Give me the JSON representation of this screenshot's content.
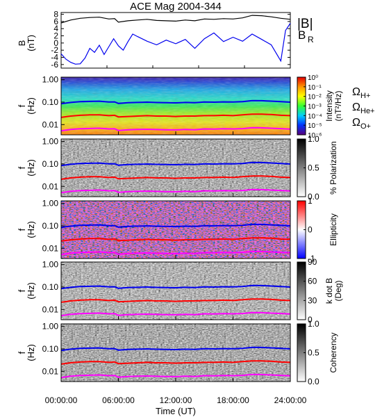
{
  "figure_title": "ACE Mag 2004-344",
  "x_axis": {
    "label": "Time (UT)",
    "ticks": [
      "00:00:00",
      "06:00:00",
      "12:00:00",
      "18:00:00",
      "24:00:00"
    ],
    "range_hours": [
      0,
      24
    ]
  },
  "freq_ticks": [
    "1.00",
    "0.10",
    "0.01"
  ],
  "freq_label": [
    "f",
    "(Hz)"
  ],
  "line_colors": {
    "H": "#0000ee",
    "He": "#ff0000",
    "O": "#ff00ff",
    "Bmag": "#000000",
    "BR": "#0000ee"
  },
  "chart_data": [
    {
      "type": "line",
      "id": "field",
      "ylabel": [
        "B",
        "(nT)"
      ],
      "yticks": [
        "8",
        "6",
        "4",
        "2",
        "0",
        "-2",
        "-4",
        "-6"
      ],
      "ylim": [
        -7,
        8.5
      ],
      "legend": [
        "|B|",
        "B",
        "R"
      ],
      "series": [
        {
          "name": "|B|",
          "x": [
            0,
            1,
            2,
            3,
            4,
            5,
            5.6,
            6,
            7,
            8,
            9,
            10,
            11,
            12,
            13,
            14,
            15,
            16,
            17,
            18,
            19,
            20,
            21,
            22,
            23,
            24
          ],
          "values": [
            5.6,
            6.4,
            6.9,
            7.1,
            7.2,
            6.7,
            6.8,
            5.8,
            6.2,
            6.4,
            6.6,
            6.3,
            6.2,
            6.1,
            6.4,
            6.2,
            6.7,
            6.6,
            6.8,
            6.7,
            7.0,
            7.7,
            7.6,
            7.3,
            6.9,
            6.6
          ]
        },
        {
          "name": "B_R",
          "x": [
            0,
            0.5,
            1,
            1.5,
            2,
            2.5,
            3,
            3.5,
            4,
            4.5,
            5,
            5.5,
            6,
            6.5,
            7,
            7.5,
            8,
            9,
            10,
            11,
            12,
            13,
            14,
            15,
            16,
            17,
            18,
            19,
            20,
            21,
            22,
            23,
            23.5,
            24
          ],
          "values": [
            -3.0,
            -4.5,
            -5.4,
            -5.9,
            -5.8,
            -4.2,
            -1.5,
            -2.6,
            -0.6,
            -3.2,
            -1.0,
            1.2,
            -0.8,
            -2.0,
            0.4,
            2.5,
            1.8,
            0.5,
            -0.5,
            0.8,
            -0.2,
            1.0,
            -1.5,
            1.2,
            2.8,
            0.4,
            1.6,
            0.5,
            2.5,
            1.0,
            -0.5,
            -5.0,
            3.5,
            5.5
          ]
        }
      ]
    },
    {
      "type": "heatmap",
      "id": "intensity",
      "colorbar": {
        "scale": "log",
        "ticks": [
          "10⁰",
          "10⁻¹",
          "10⁻²",
          "10⁻³",
          "10⁻⁴",
          "10⁻⁵",
          "10⁻⁶"
        ],
        "label": [
          "Intensity",
          "(nT²/Hz)"
        ],
        "colormap": "rainbow"
      },
      "legend": [
        {
          "symbol": "Ω",
          "sub": "H+",
          "color": "#0000ee"
        },
        {
          "symbol": "Ω",
          "sub": "He+",
          "color": "#ff0000"
        },
        {
          "symbol": "Ω",
          "sub": "O+",
          "color": "#ff00ff"
        }
      ]
    },
    {
      "type": "heatmap",
      "id": "polarization",
      "colorbar": {
        "scale": "linear",
        "ticks": [
          "1.0",
          "0.5",
          "0.0"
        ],
        "label": [
          "% Polarization"
        ],
        "colormap": "gray"
      }
    },
    {
      "type": "heatmap",
      "id": "ellipticity",
      "colorbar": {
        "scale": "linear",
        "ticks": [
          "1",
          "0",
          "-1"
        ],
        "label": [
          "Ellipticity"
        ],
        "colormap": "bwr"
      }
    },
    {
      "type": "heatmap",
      "id": "kdotb",
      "colorbar": {
        "scale": "linear",
        "ticks": [
          "90",
          "60",
          "30",
          "0"
        ],
        "label": [
          "k dot B",
          "(Deg)"
        ],
        "colormap": "gray"
      }
    },
    {
      "type": "heatmap",
      "id": "coherency",
      "colorbar": {
        "scale": "linear",
        "ticks": [
          "1.0",
          "0.5",
          "0.0"
        ],
        "label": [
          "Coherency"
        ],
        "colormap": "gray"
      }
    }
  ],
  "gyrofrequency_lines": {
    "x": [
      0,
      1,
      2,
      3,
      4,
      5,
      5.6,
      6,
      7,
      8,
      9,
      10,
      11,
      12,
      13,
      14,
      15,
      16,
      17,
      18,
      19,
      20,
      21,
      22,
      23,
      24
    ],
    "f_H": [
      0.085,
      0.097,
      0.105,
      0.108,
      0.11,
      0.102,
      0.103,
      0.088,
      0.094,
      0.097,
      0.1,
      0.096,
      0.094,
      0.093,
      0.097,
      0.094,
      0.102,
      0.1,
      0.103,
      0.102,
      0.106,
      0.117,
      0.116,
      0.111,
      0.105,
      0.1
    ],
    "f_He": [
      0.021,
      0.024,
      0.026,
      0.027,
      0.027,
      0.025,
      0.026,
      0.022,
      0.023,
      0.024,
      0.025,
      0.024,
      0.024,
      0.023,
      0.024,
      0.024,
      0.025,
      0.025,
      0.026,
      0.025,
      0.027,
      0.029,
      0.029,
      0.028,
      0.026,
      0.025
    ],
    "f_O": [
      0.0053,
      0.0061,
      0.0065,
      0.0067,
      0.0069,
      0.0064,
      0.0065,
      0.0055,
      0.0059,
      0.0061,
      0.0062,
      0.006,
      0.0059,
      0.0058,
      0.0061,
      0.0059,
      0.0064,
      0.0063,
      0.0065,
      0.0064,
      0.0066,
      0.0073,
      0.0072,
      0.0069,
      0.0066,
      0.0063
    ]
  }
}
